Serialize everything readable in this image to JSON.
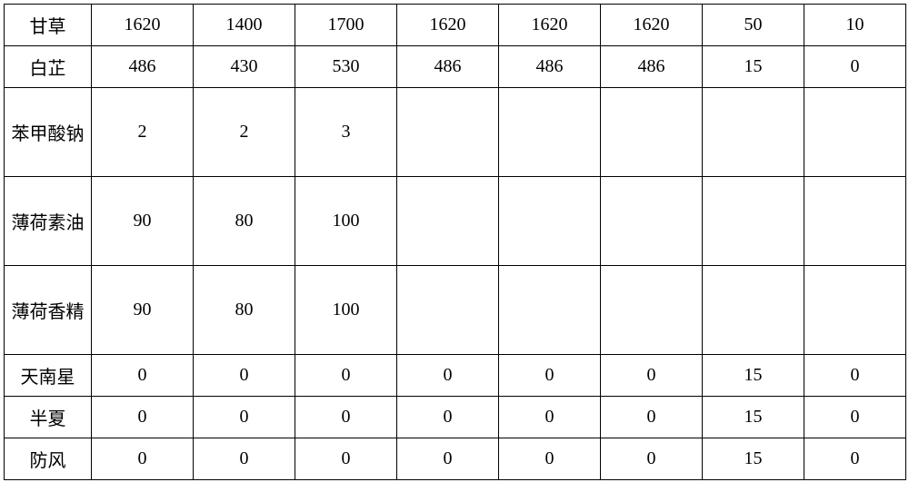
{
  "table": {
    "type": "table",
    "columns": 9,
    "col0_width": 96,
    "coln_width": 112,
    "border_color": "#000000",
    "background_color": "#ffffff",
    "text_color": "#000000",
    "font_size": 20,
    "font_family": "SimSun",
    "rows": [
      {
        "height": "short",
        "cells": [
          "甘草",
          "1620",
          "1400",
          "1700",
          "1620",
          "1620",
          "1620",
          "50",
          "10"
        ]
      },
      {
        "height": "short",
        "cells": [
          "白芷",
          "486",
          "430",
          "530",
          "486",
          "486",
          "486",
          "15",
          "0"
        ]
      },
      {
        "height": "tall",
        "cells": [
          "苯甲酸钠",
          "2",
          "2",
          "3",
          "",
          "",
          "",
          "",
          ""
        ]
      },
      {
        "height": "tall",
        "cells": [
          "薄荷素油",
          "90",
          "80",
          "100",
          "",
          "",
          "",
          "",
          ""
        ]
      },
      {
        "height": "tall",
        "cells": [
          "薄荷香精",
          "90",
          "80",
          "100",
          "",
          "",
          "",
          "",
          ""
        ]
      },
      {
        "height": "short",
        "cells": [
          "天南星",
          "0",
          "0",
          "0",
          "0",
          "0",
          "0",
          "15",
          "0"
        ]
      },
      {
        "height": "short",
        "cells": [
          "半夏",
          "0",
          "0",
          "0",
          "0",
          "0",
          "0",
          "15",
          "0"
        ]
      },
      {
        "height": "short",
        "cells": [
          "防风",
          "0",
          "0",
          "0",
          "0",
          "0",
          "0",
          "15",
          "0"
        ]
      }
    ]
  }
}
